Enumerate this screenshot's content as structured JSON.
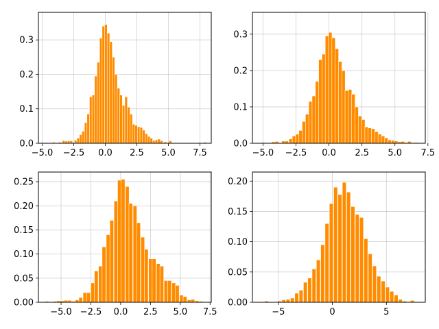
{
  "bar_color": "#ff8c00",
  "chart_data": [
    {
      "type": "bar",
      "title": "",
      "xlabel": "",
      "ylabel": "",
      "grid": true,
      "xlim": [
        -5.3,
        8.4
      ],
      "ylim": [
        0,
        0.38
      ],
      "xticks": [
        -5.0,
        -2.5,
        0.0,
        2.5,
        5.0,
        7.5
      ],
      "xtick_labels": [
        "−5.0",
        "−2.5",
        "0.0",
        "2.5",
        "5.0",
        "7.5"
      ],
      "yticks": [
        0.0,
        0.1,
        0.2,
        0.3
      ],
      "ytick_labels": [
        "0.0",
        "0.1",
        "0.2",
        "0.3"
      ],
      "bin_width": 0.205,
      "bins": [
        {
          "x": -4.7,
          "y": 0.002
        },
        {
          "x": -4.1,
          "y": 0.003
        },
        {
          "x": -3.6,
          "y": 0.003
        },
        {
          "x": -3.3,
          "y": 0.008
        },
        {
          "x": -3.1,
          "y": 0.006
        },
        {
          "x": -2.9,
          "y": 0.007
        },
        {
          "x": -2.7,
          "y": 0.007
        },
        {
          "x": -2.35,
          "y": 0.009
        },
        {
          "x": -2.15,
          "y": 0.015
        },
        {
          "x": -1.95,
          "y": 0.025
        },
        {
          "x": -1.75,
          "y": 0.035
        },
        {
          "x": -1.55,
          "y": 0.06
        },
        {
          "x": -1.35,
          "y": 0.085
        },
        {
          "x": -1.15,
          "y": 0.135
        },
        {
          "x": -0.95,
          "y": 0.14
        },
        {
          "x": -0.75,
          "y": 0.195
        },
        {
          "x": -0.55,
          "y": 0.235
        },
        {
          "x": -0.35,
          "y": 0.305
        },
        {
          "x": -0.15,
          "y": 0.34
        },
        {
          "x": 0.05,
          "y": 0.345
        },
        {
          "x": 0.25,
          "y": 0.32
        },
        {
          "x": 0.45,
          "y": 0.295
        },
        {
          "x": 0.65,
          "y": 0.25
        },
        {
          "x": 0.85,
          "y": 0.2
        },
        {
          "x": 1.05,
          "y": 0.16
        },
        {
          "x": 1.25,
          "y": 0.14
        },
        {
          "x": 1.45,
          "y": 0.11
        },
        {
          "x": 1.65,
          "y": 0.135
        },
        {
          "x": 1.85,
          "y": 0.105
        },
        {
          "x": 2.05,
          "y": 0.085
        },
        {
          "x": 2.25,
          "y": 0.055
        },
        {
          "x": 2.45,
          "y": 0.052
        },
        {
          "x": 2.65,
          "y": 0.048
        },
        {
          "x": 2.85,
          "y": 0.046
        },
        {
          "x": 3.05,
          "y": 0.038
        },
        {
          "x": 3.25,
          "y": 0.028
        },
        {
          "x": 3.45,
          "y": 0.02
        },
        {
          "x": 3.65,
          "y": 0.015
        },
        {
          "x": 3.85,
          "y": 0.008
        },
        {
          "x": 4.05,
          "y": 0.01
        },
        {
          "x": 4.25,
          "y": 0.012
        },
        {
          "x": 4.45,
          "y": 0.008
        },
        {
          "x": 4.75,
          "y": 0.004
        },
        {
          "x": 5.15,
          "y": 0.007
        },
        {
          "x": 7.9,
          "y": 0.003
        }
      ]
    },
    {
      "type": "bar",
      "title": "",
      "xlabel": "",
      "ylabel": "",
      "grid": true,
      "xlim": [
        -5.8,
        7.3
      ],
      "ylim": [
        0,
        0.36
      ],
      "xticks": [
        -5.0,
        -2.5,
        0.0,
        2.5,
        5.0,
        7.5
      ],
      "xtick_labels": [
        "−5.0",
        "−2.5",
        "0.0",
        "2.5",
        "5.0",
        "7.5"
      ],
      "yticks": [
        0.0,
        0.1,
        0.2,
        0.3
      ],
      "ytick_labels": [
        "0.0",
        "0.1",
        "0.2",
        "0.3"
      ],
      "bin_width": 0.26,
      "bins": [
        {
          "x": -5.0,
          "y": 0.002
        },
        {
          "x": -4.2,
          "y": 0.004
        },
        {
          "x": -3.95,
          "y": 0.005
        },
        {
          "x": -3.45,
          "y": 0.006
        },
        {
          "x": -3.2,
          "y": 0.006
        },
        {
          "x": -2.9,
          "y": 0.012
        },
        {
          "x": -2.65,
          "y": 0.02
        },
        {
          "x": -2.4,
          "y": 0.025
        },
        {
          "x": -2.15,
          "y": 0.035
        },
        {
          "x": -1.9,
          "y": 0.06
        },
        {
          "x": -1.65,
          "y": 0.08
        },
        {
          "x": -1.4,
          "y": 0.115
        },
        {
          "x": -1.15,
          "y": 0.13
        },
        {
          "x": -0.9,
          "y": 0.17
        },
        {
          "x": -0.65,
          "y": 0.23
        },
        {
          "x": -0.4,
          "y": 0.245
        },
        {
          "x": -0.15,
          "y": 0.295
        },
        {
          "x": 0.1,
          "y": 0.305
        },
        {
          "x": 0.35,
          "y": 0.29
        },
        {
          "x": 0.6,
          "y": 0.26
        },
        {
          "x": 0.85,
          "y": 0.225
        },
        {
          "x": 1.1,
          "y": 0.2
        },
        {
          "x": 1.35,
          "y": 0.145
        },
        {
          "x": 1.6,
          "y": 0.148
        },
        {
          "x": 1.85,
          "y": 0.135
        },
        {
          "x": 2.1,
          "y": 0.1
        },
        {
          "x": 2.35,
          "y": 0.075
        },
        {
          "x": 2.6,
          "y": 0.065
        },
        {
          "x": 2.85,
          "y": 0.045
        },
        {
          "x": 3.1,
          "y": 0.042
        },
        {
          "x": 3.35,
          "y": 0.04
        },
        {
          "x": 3.6,
          "y": 0.032
        },
        {
          "x": 3.85,
          "y": 0.025
        },
        {
          "x": 4.1,
          "y": 0.02
        },
        {
          "x": 4.35,
          "y": 0.015
        },
        {
          "x": 4.6,
          "y": 0.009
        },
        {
          "x": 4.85,
          "y": 0.008
        },
        {
          "x": 5.1,
          "y": 0.006
        },
        {
          "x": 5.35,
          "y": 0.004
        },
        {
          "x": 5.6,
          "y": 0.005
        },
        {
          "x": 5.85,
          "y": 0.002
        },
        {
          "x": 6.1,
          "y": 0.005
        },
        {
          "x": 6.6,
          "y": 0.002
        }
      ]
    },
    {
      "type": "bar",
      "title": "",
      "xlabel": "",
      "ylabel": "",
      "grid": true,
      "xlim": [
        -6.9,
        7.6
      ],
      "ylim": [
        0,
        0.27
      ],
      "xticks": [
        -5.0,
        -2.5,
        0.0,
        2.5,
        5.0,
        7.5
      ],
      "xtick_labels": [
        "−5.0",
        "−2.5",
        "0.0",
        "2.5",
        "5.0",
        "7.5"
      ],
      "yticks": [
        0.0,
        0.05,
        0.1,
        0.15,
        0.2,
        0.25
      ],
      "ytick_labels": [
        "0.00",
        "0.05",
        "0.10",
        "0.15",
        "0.20",
        "0.25"
      ],
      "bin_width": 0.315,
      "bins": [
        {
          "x": -6.2,
          "y": 0.002
        },
        {
          "x": -5.5,
          "y": 0.002
        },
        {
          "x": -5.2,
          "y": 0.003
        },
        {
          "x": -4.9,
          "y": 0.003
        },
        {
          "x": -4.6,
          "y": 0.004
        },
        {
          "x": -4.3,
          "y": 0.004
        },
        {
          "x": -4.0,
          "y": 0.002
        },
        {
          "x": -3.65,
          "y": 0.005
        },
        {
          "x": -3.35,
          "y": 0.01
        },
        {
          "x": -3.0,
          "y": 0.02
        },
        {
          "x": -2.7,
          "y": 0.02
        },
        {
          "x": -2.35,
          "y": 0.04
        },
        {
          "x": -2.05,
          "y": 0.065
        },
        {
          "x": -1.7,
          "y": 0.075
        },
        {
          "x": -1.4,
          "y": 0.115
        },
        {
          "x": -1.05,
          "y": 0.14
        },
        {
          "x": -0.75,
          "y": 0.17
        },
        {
          "x": -0.4,
          "y": 0.21
        },
        {
          "x": -0.1,
          "y": 0.253
        },
        {
          "x": 0.2,
          "y": 0.255
        },
        {
          "x": 0.55,
          "y": 0.24
        },
        {
          "x": 0.85,
          "y": 0.205
        },
        {
          "x": 1.2,
          "y": 0.2
        },
        {
          "x": 1.5,
          "y": 0.165
        },
        {
          "x": 1.85,
          "y": 0.135
        },
        {
          "x": 2.15,
          "y": 0.11
        },
        {
          "x": 2.5,
          "y": 0.09
        },
        {
          "x": 2.8,
          "y": 0.09
        },
        {
          "x": 3.15,
          "y": 0.08
        },
        {
          "x": 3.45,
          "y": 0.075
        },
        {
          "x": 3.8,
          "y": 0.045
        },
        {
          "x": 4.1,
          "y": 0.045
        },
        {
          "x": 4.45,
          "y": 0.04
        },
        {
          "x": 4.75,
          "y": 0.035
        },
        {
          "x": 5.1,
          "y": 0.015
        },
        {
          "x": 5.4,
          "y": 0.012
        },
        {
          "x": 5.75,
          "y": 0.005
        },
        {
          "x": 6.05,
          "y": 0.006
        },
        {
          "x": 6.4,
          "y": 0.003
        },
        {
          "x": 6.75,
          "y": 0.002
        }
      ]
    },
    {
      "type": "bar",
      "title": "",
      "xlabel": "",
      "ylabel": "",
      "grid": true,
      "xlim": [
        -7.4,
        8.6
      ],
      "ylim": [
        0,
        0.215
      ],
      "xticks": [
        -5,
        0,
        5
      ],
      "xtick_labels": [
        "−5",
        "0",
        "5"
      ],
      "yticks": [
        0.0,
        0.05,
        0.1,
        0.15,
        0.2
      ],
      "ytick_labels": [
        "0.00",
        "0.05",
        "0.10",
        "0.15",
        "0.20"
      ],
      "bin_width": 0.355,
      "bins": [
        {
          "x": -6.1,
          "y": 0.002
        },
        {
          "x": -4.9,
          "y": 0.002
        },
        {
          "x": -4.5,
          "y": 0.004
        },
        {
          "x": -4.1,
          "y": 0.005
        },
        {
          "x": -3.7,
          "y": 0.007
        },
        {
          "x": -3.3,
          "y": 0.015
        },
        {
          "x": -2.9,
          "y": 0.02
        },
        {
          "x": -2.5,
          "y": 0.033
        },
        {
          "x": -2.1,
          "y": 0.04
        },
        {
          "x": -1.7,
          "y": 0.055
        },
        {
          "x": -1.3,
          "y": 0.07
        },
        {
          "x": -0.9,
          "y": 0.095
        },
        {
          "x": -0.5,
          "y": 0.13
        },
        {
          "x": -0.1,
          "y": 0.163
        },
        {
          "x": 0.3,
          "y": 0.19
        },
        {
          "x": 0.7,
          "y": 0.178
        },
        {
          "x": 1.1,
          "y": 0.198
        },
        {
          "x": 1.5,
          "y": 0.182
        },
        {
          "x": 1.9,
          "y": 0.158
        },
        {
          "x": 2.3,
          "y": 0.145
        },
        {
          "x": 2.7,
          "y": 0.14
        },
        {
          "x": 3.1,
          "y": 0.105
        },
        {
          "x": 3.5,
          "y": 0.08
        },
        {
          "x": 3.9,
          "y": 0.06
        },
        {
          "x": 4.3,
          "y": 0.043
        },
        {
          "x": 4.7,
          "y": 0.035
        },
        {
          "x": 5.1,
          "y": 0.025
        },
        {
          "x": 5.5,
          "y": 0.018
        },
        {
          "x": 5.9,
          "y": 0.012
        },
        {
          "x": 6.3,
          "y": 0.005
        },
        {
          "x": 6.7,
          "y": 0.002
        },
        {
          "x": 7.4,
          "y": 0.003
        }
      ]
    }
  ]
}
